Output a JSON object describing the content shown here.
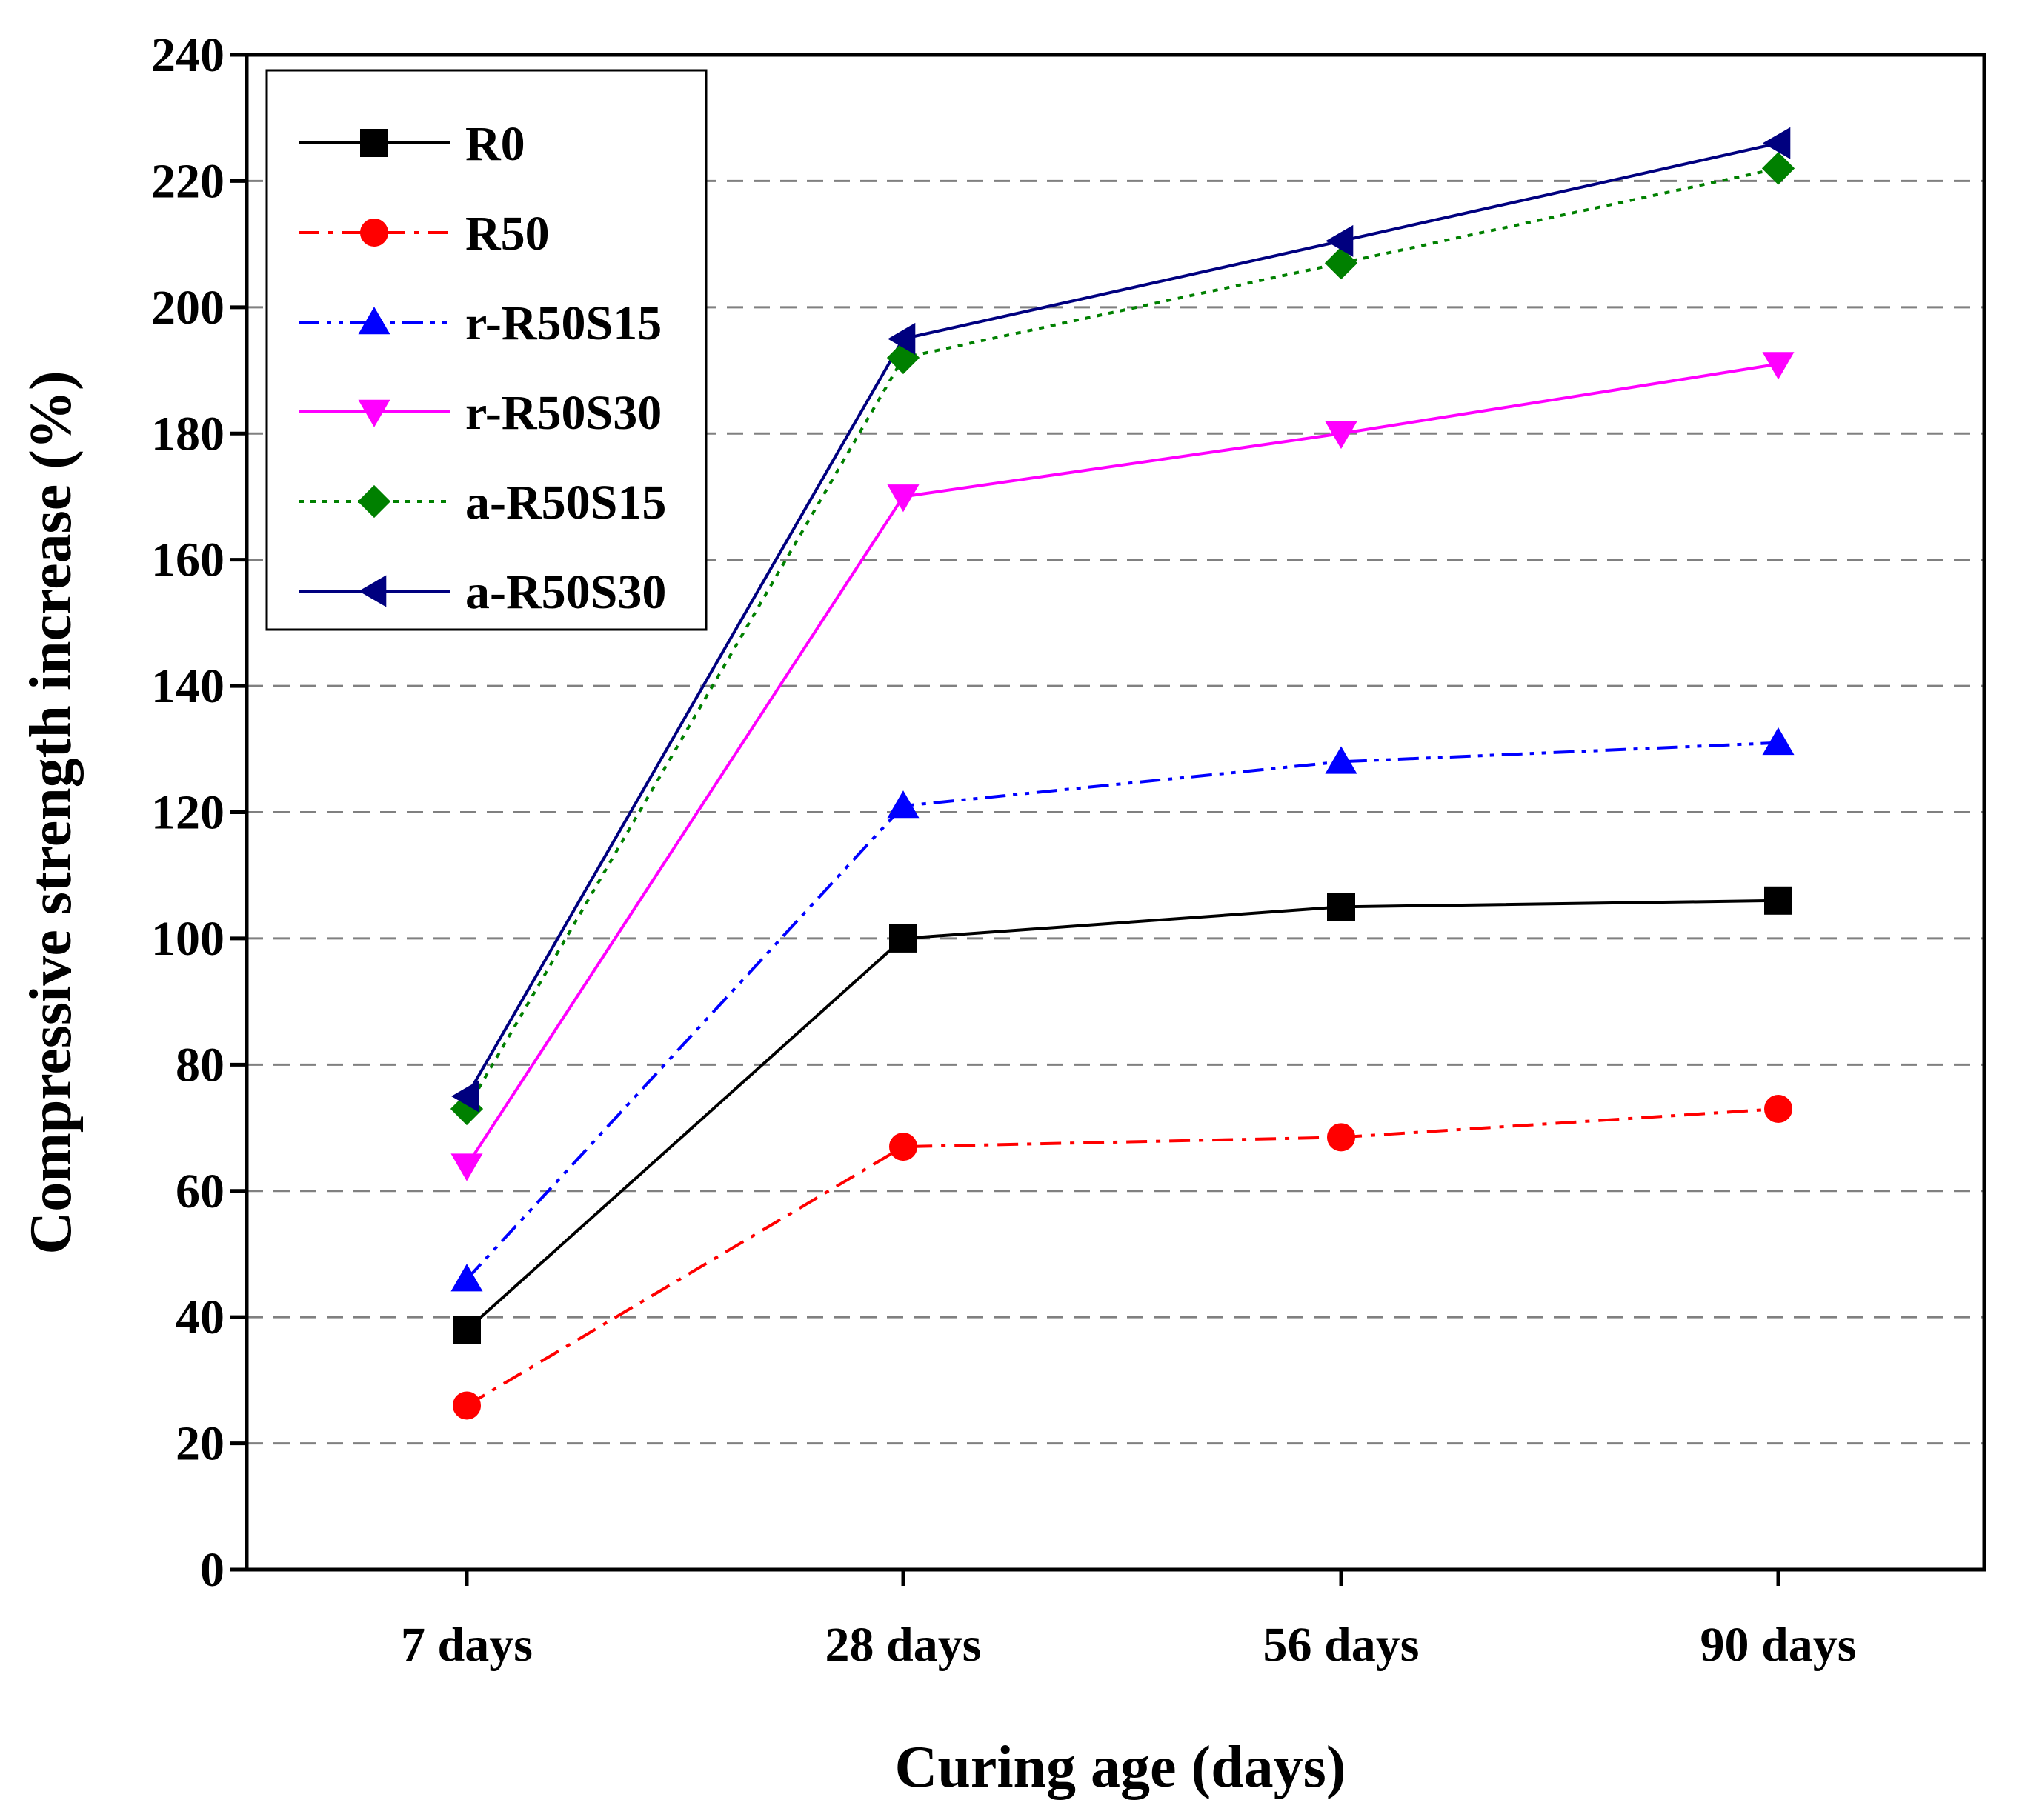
{
  "chart_data": {
    "type": "line",
    "title": "",
    "xlabel": "Curing age (days)",
    "ylabel": "Compressive strength increase (%)",
    "categories": [
      "7 days",
      "28 days",
      "56 days",
      "90 days"
    ],
    "ylim": [
      0,
      240
    ],
    "yticks": [
      0,
      20,
      40,
      60,
      80,
      100,
      120,
      140,
      160,
      180,
      200,
      220,
      240
    ],
    "grid": "horizontal dashed",
    "legend_position": "top-left",
    "series": [
      {
        "name": "R0",
        "values": [
          38,
          100,
          105,
          106
        ],
        "color": "#000000",
        "dash": "solid",
        "marker": "square"
      },
      {
        "name": "R50",
        "values": [
          26,
          67,
          68.5,
          73
        ],
        "color": "#ff0000",
        "dash": "dashdot",
        "marker": "circle"
      },
      {
        "name": "r-R50S15",
        "values": [
          46,
          121,
          128,
          131
        ],
        "color": "#0000ff",
        "dash": "dashdotdot",
        "marker": "triangle-up"
      },
      {
        "name": "r-R50S30",
        "values": [
          64,
          170,
          180,
          191
        ],
        "color": "#ff00ff",
        "dash": "solid",
        "marker": "triangle-down"
      },
      {
        "name": "a-R50S15",
        "values": [
          73,
          192,
          207,
          222
        ],
        "color": "#008000",
        "dash": "dotted",
        "marker": "diamond"
      },
      {
        "name": "a-R50S30",
        "values": [
          75,
          195,
          210.5,
          226
        ],
        "color": "#00007f",
        "dash": "solid",
        "marker": "triangle-left"
      }
    ]
  }
}
